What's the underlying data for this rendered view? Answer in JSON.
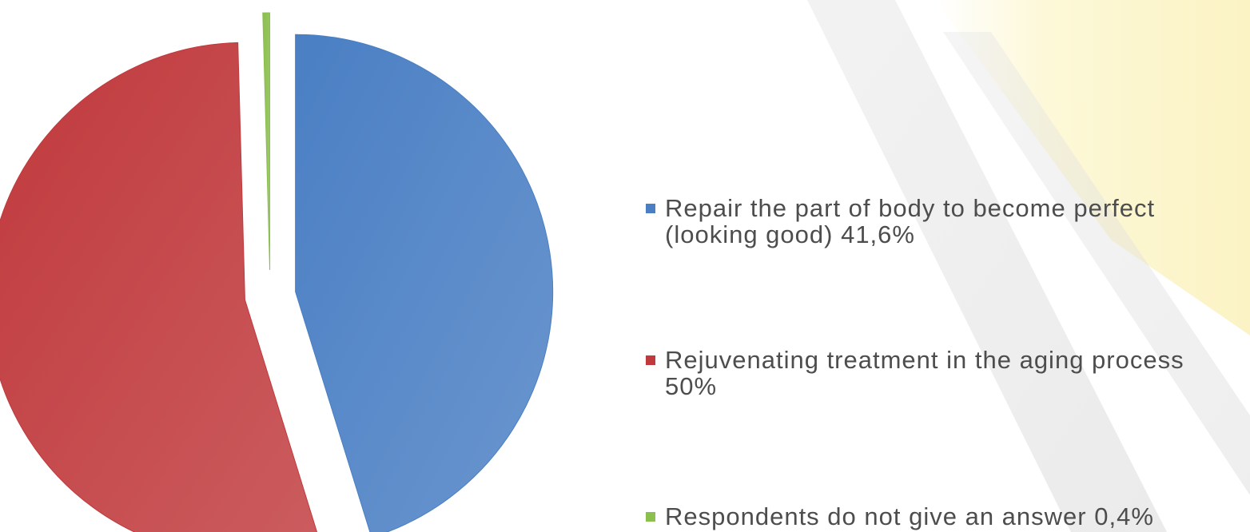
{
  "chart_data": {
    "type": "pie",
    "title": "",
    "slices": [
      {
        "label": "Repair the part of body to become perfect (looking good) 41,6%",
        "value": 41.6,
        "color": "#4a7fc4"
      },
      {
        "label": "Rejuvenating treatment in the aging process 50%",
        "value": 50,
        "color": "#c0393c"
      },
      {
        "label": "Respondents do not give an answer 0,4%",
        "value": 0.4,
        "color": "#8bbf4e"
      }
    ],
    "legend_position": "right"
  },
  "colors": {
    "background_yellow": "#fdf8d8",
    "background_stripe": "#dcdcdc"
  }
}
